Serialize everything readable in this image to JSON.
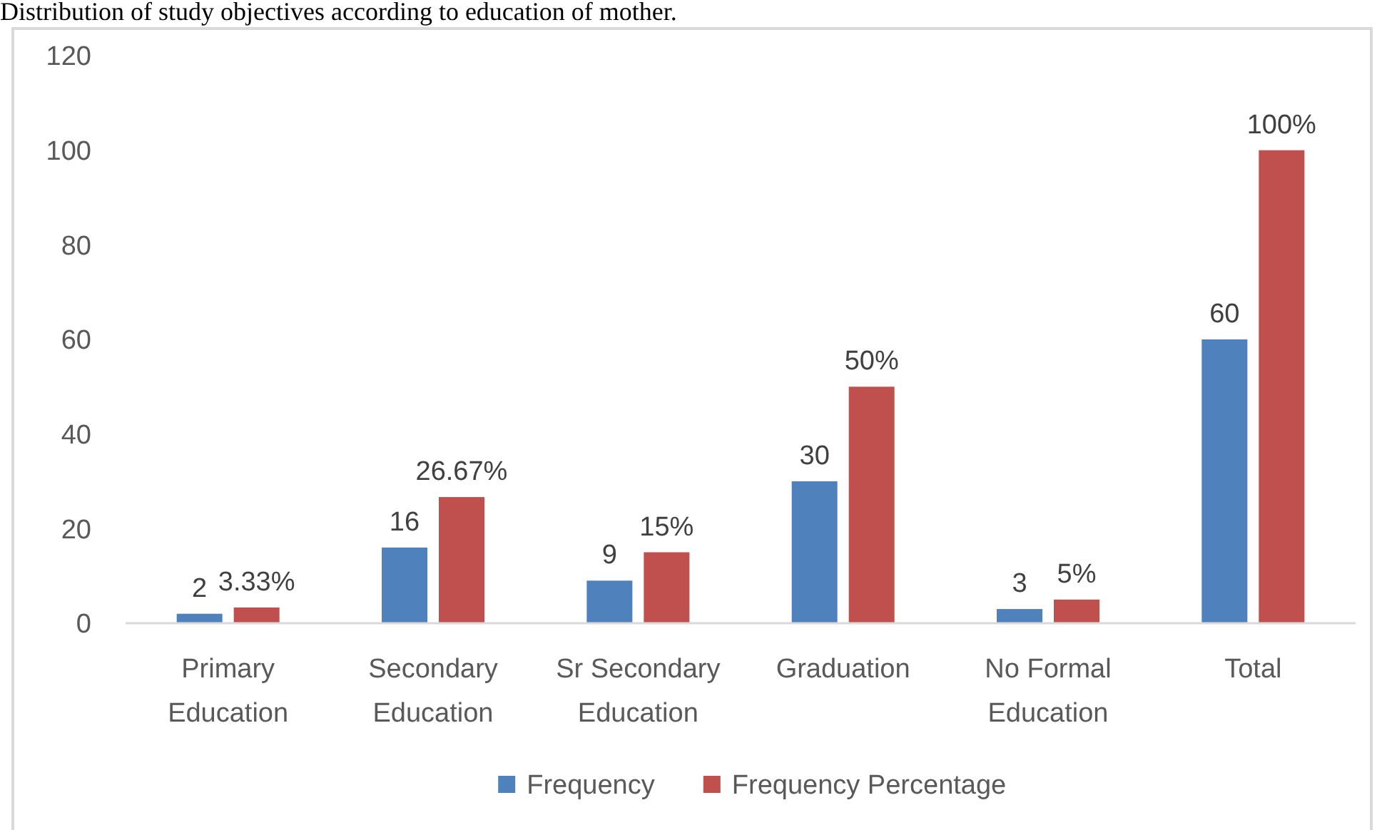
{
  "chart_data": {
    "type": "bar",
    "title": "Distribution of study objectives according to education of mother.",
    "categories": [
      "Primary Education",
      "Secondary Education",
      "Sr Secondary Education",
      "Graduation",
      "No Formal Education",
      "Total"
    ],
    "series": [
      {
        "name": "Frequency",
        "color": "#4f81bd",
        "values": [
          2,
          16,
          9,
          30,
          3,
          60
        ],
        "value_labels": [
          "2",
          "16",
          "9",
          "30",
          "3",
          "60"
        ]
      },
      {
        "name": "Frequency Percentage",
        "color": "#c0504d",
        "values": [
          3.33,
          26.67,
          15,
          50,
          5,
          100
        ],
        "value_labels": [
          "3.33%",
          "26.67%",
          "15%",
          "50%",
          "5%",
          "100%"
        ]
      }
    ],
    "ylim": [
      0,
      120
    ],
    "yticks": [
      0,
      20,
      40,
      60,
      80,
      100,
      120
    ],
    "grid": false,
    "legend": "bottom"
  }
}
